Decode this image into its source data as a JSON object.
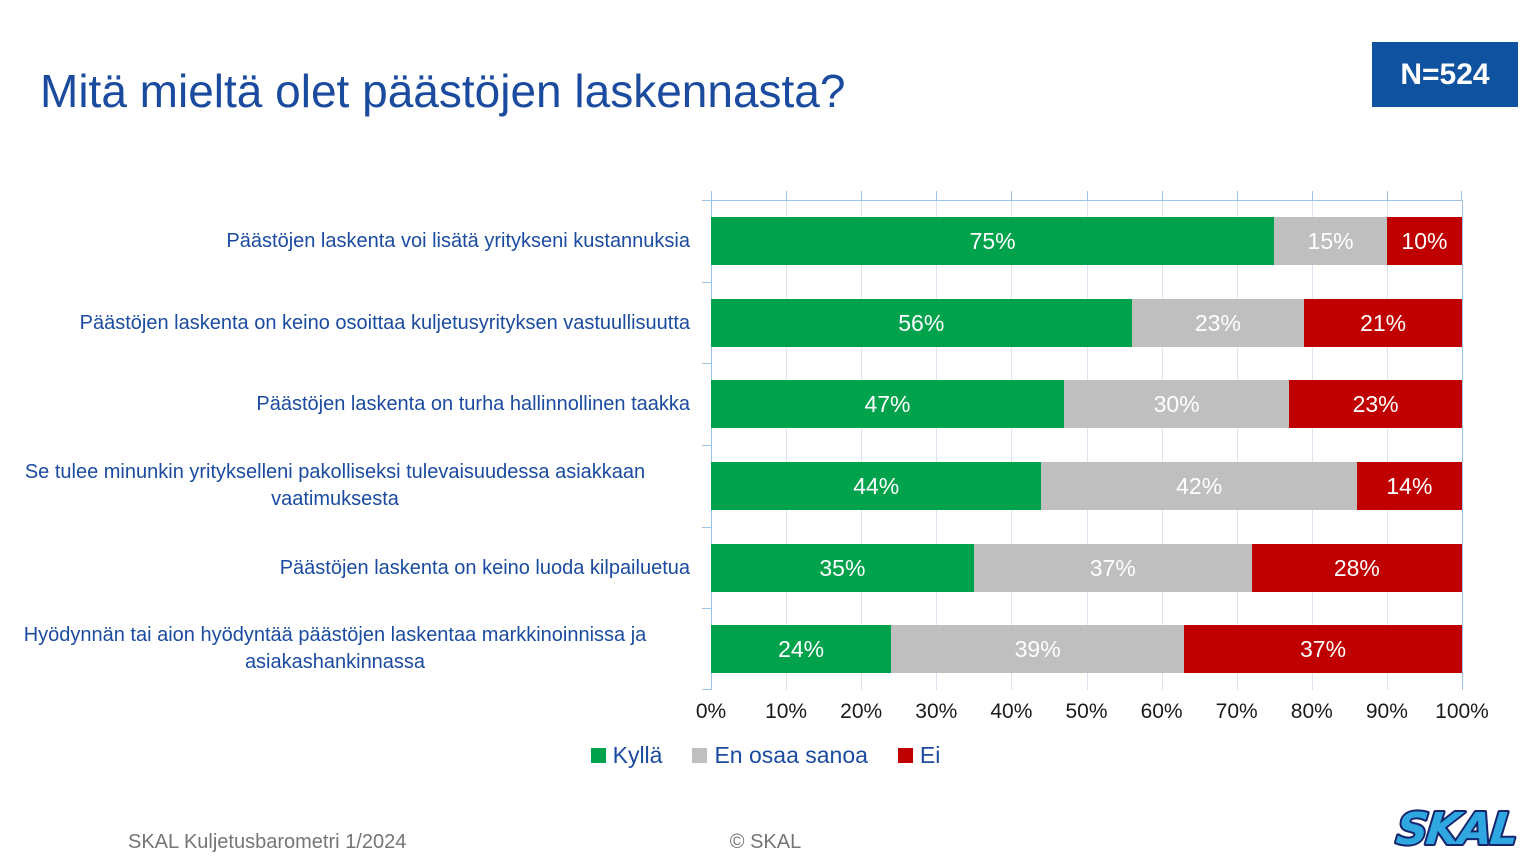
{
  "title": "Mitä mieltä olet päästöjen laskennasta?",
  "badge": {
    "label": "N=524"
  },
  "chart_data": {
    "type": "bar",
    "orientation": "horizontal",
    "stacked": true,
    "title": "Mitä mieltä olet päästöjen laskennasta?",
    "categories": [
      "Päästöjen laskenta voi lisätä yritykseni kustannuksia",
      "Päästöjen laskenta on keino osoittaa kuljetusyrityksen vastuullisuutta",
      "Päästöjen laskenta on turha hallinnollinen taakka",
      "Se tulee minunkin yritykselleni pakolliseksi tulevaisuudessa asiakkaan vaatimuksesta",
      "Päästöjen laskenta on keino luoda kilpailuetua",
      "Hyödynnän tai aion hyödyntää päästöjen laskentaa markkinoinnissa ja asiakashankinnassa"
    ],
    "series": [
      {
        "name": "Kyllä",
        "color": "#00A24C",
        "values": [
          75,
          56,
          47,
          44,
          35,
          24
        ]
      },
      {
        "name": "En osaa sanoa",
        "color": "#BFBFBF",
        "values": [
          15,
          23,
          30,
          42,
          37,
          39
        ]
      },
      {
        "name": "Ei",
        "color": "#C00000",
        "values": [
          10,
          21,
          23,
          14,
          28,
          37
        ]
      }
    ],
    "value_suffix": "%",
    "xlim": [
      0,
      100
    ],
    "x_ticks": [
      "0%",
      "10%",
      "20%",
      "30%",
      "40%",
      "50%",
      "60%",
      "70%",
      "80%",
      "90%",
      "100%"
    ],
    "grid": true,
    "legend_position": "bottom",
    "data_labels": "inside-white"
  },
  "footer": {
    "left": "SKAL Kuljetusbarometri 1/2024",
    "center": "© SKAL",
    "logo_text": "SKAL"
  },
  "colors": {
    "title_blue": "#1A4B9F",
    "badge_bg": "#0F52A0",
    "axis_blue": "#9DC3E6",
    "gridline": "#DBE5F1",
    "tick_text": "#1A1A1A",
    "footer_gray": "#757575",
    "logo_fill": "#2FA8E1",
    "logo_stroke": "#16246B"
  }
}
